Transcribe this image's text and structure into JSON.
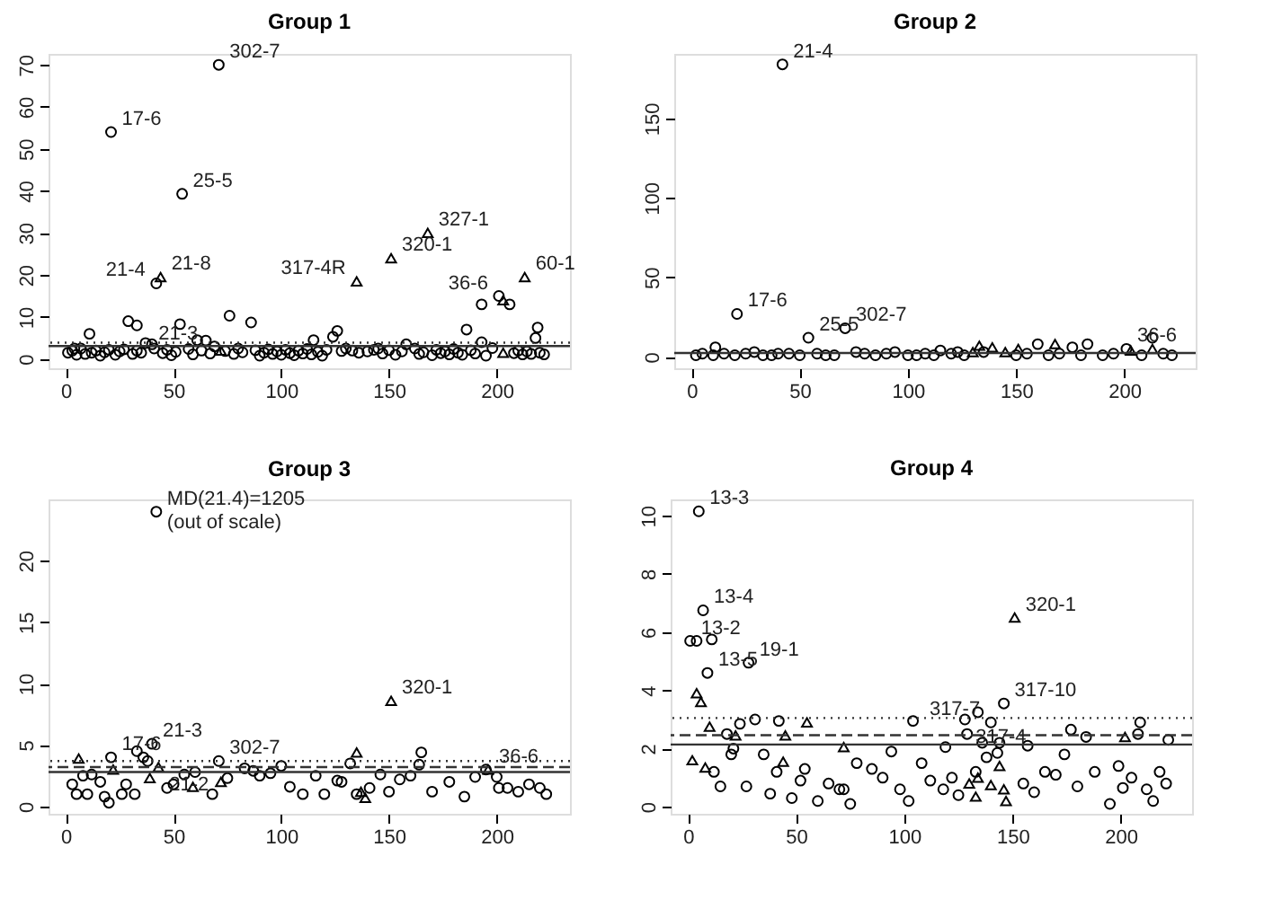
{
  "chart_data": [
    {
      "type": "scatter",
      "title": "Group 1",
      "xlim": [
        -8,
        234
      ],
      "ylim": [
        -2.2,
        72.6
      ],
      "xticks": [
        0,
        50,
        100,
        150,
        200
      ],
      "yticks": [
        0,
        10,
        20,
        30,
        40,
        50,
        60,
        70
      ],
      "grid": false,
      "series": [
        {
          "marker": "circle",
          "color": "#000000",
          "x": [
            1,
            3,
            5,
            7,
            9,
            12,
            14,
            16,
            18,
            20,
            23,
            25,
            27,
            31,
            33,
            35,
            37,
            45,
            47,
            49,
            51,
            57,
            59,
            61,
            63,
            65,
            67,
            69,
            74,
            78,
            80,
            82,
            88,
            90,
            92,
            94,
            96,
            98,
            100,
            102,
            104,
            106,
            108,
            110,
            112,
            114,
            117,
            119,
            121,
            128,
            147,
            150,
            153,
            156,
            162,
            164,
            166,
            170,
            172,
            174,
            176,
            178,
            180,
            182,
            184,
            188,
            190,
            195,
            198,
            208,
            210,
            212,
            214,
            216,
            220,
            222,
            11,
            29,
            33,
            53,
            76,
            86,
            115,
            124,
            126,
            158,
            186,
            193,
            193,
            206,
            218,
            219
          ],
          "values": [
            1.5,
            2,
            1,
            2.5,
            1.2,
            1.5,
            2,
            0.8,
            1.6,
            2.2,
            1,
            1.8,
            2.3,
            1.2,
            2,
            1.5,
            3.8,
            1.4,
            2.2,
            0.9,
            1.7,
            2.4,
            1.1,
            4.5,
            2,
            4.4,
            1.3,
            3,
            1.9,
            1.2,
            2.5,
            1.6,
            2.1,
            0.8,
            1.5,
            2.3,
            1.2,
            1.8,
            1,
            2.2,
            1.4,
            0.9,
            2,
            1.3,
            2.4,
            1.1,
            1.7,
            0.8,
            2.2,
            1.9,
            1.3,
            2.1,
            1,
            1.8,
            2.5,
            1.2,
            1.6,
            0.9,
            2.2,
            1.4,
            1.8,
            1.1,
            2.4,
            1.5,
            1,
            2.1,
            1.3,
            0.8,
            2.6,
            1.4,
            2,
            1.1,
            1.8,
            1.2,
            1.5,
            1.1,
            6,
            9,
            8,
            8.3,
            10.3,
            8.7,
            4.5,
            5.3,
            6.7,
            3.5,
            7,
            13,
            4,
            13,
            5,
            7.5
          ]
        },
        {
          "marker": "circle",
          "color": "#000000",
          "x": [
            21,
            71,
            54,
            42,
            201,
            4,
            38,
            40,
            41,
            130,
            133,
            136,
            140,
            143,
            145
          ],
          "values": [
            54,
            70,
            39.3,
            18,
            15,
            2.5,
            null,
            3.5,
            2.5,
            2.5,
            2,
            1.5,
            1.8,
            2.2,
            2.5
          ]
        },
        {
          "marker": "triangle",
          "color": "#000000",
          "x": [
            135,
            72,
            203
          ],
          "values": [
            18.5,
            2,
            1.5
          ]
        },
        {
          "marker": "triangle",
          "color": "#000000",
          "x": [
            44,
            151,
            168,
            213,
            203
          ],
          "values": [
            19.5,
            24,
            30,
            19.5,
            14
          ]
        }
      ],
      "ref_lines": [
        {
          "axis": "y",
          "value": 3.1,
          "line_style": "solid"
        },
        {
          "axis": "y",
          "value": 3.9,
          "line_style": "dotted"
        }
      ],
      "annotations": [
        {
          "text": "302-7",
          "x": 71,
          "y": 70
        },
        {
          "text": "17-6",
          "x": 21,
          "y": 54
        },
        {
          "text": "25-5",
          "x": 54,
          "y": 39.3
        },
        {
          "text": "21-8",
          "x": 44,
          "y": 19.5
        },
        {
          "text": "21-4",
          "x": 42,
          "y": 18
        },
        {
          "text": "21-3",
          "x": 38,
          "y": 3
        },
        {
          "text": "320-1",
          "x": 151,
          "y": 24
        },
        {
          "text": "317-4R",
          "x": 135,
          "y": 18.5
        },
        {
          "text": "327-1",
          "x": 168,
          "y": 30
        },
        {
          "text": "60-1",
          "x": 213,
          "y": 19.5
        },
        {
          "text": "36-6",
          "x": 201,
          "y": 15
        }
      ]
    },
    {
      "type": "scatter",
      "title": "Group 2",
      "xlim": [
        -8,
        233
      ],
      "ylim": [
        -7.2,
        190.6
      ],
      "xticks": [
        0,
        50,
        100,
        150,
        200
      ],
      "yticks": [
        0,
        50,
        100,
        150
      ],
      "grid": false,
      "series": [
        {
          "marker": "circle",
          "color": "#000000",
          "x": [
            2,
            10,
            15,
            20,
            25,
            33,
            37,
            45,
            50,
            58,
            62,
            66,
            80,
            85,
            90,
            100,
            104,
            108,
            112,
            120,
            126,
            150,
            155,
            165,
            170,
            180,
            190,
            195,
            208,
            218,
            222,
            11,
            29,
            160,
            176,
            183,
            213,
            115,
            123,
            94,
            76
          ],
          "values": [
            1,
            1,
            2,
            1,
            2,
            1,
            1,
            2,
            1,
            2,
            1,
            1,
            2,
            1,
            2,
            1,
            1,
            2,
            1,
            2,
            1,
            1,
            2,
            1,
            2,
            1,
            1,
            2,
            1,
            2,
            1,
            6,
            3,
            8,
            6,
            8,
            12,
            4,
            3,
            3,
            3
          ]
        },
        {
          "marker": "circle",
          "color": "#000000",
          "x": [
            42,
            21,
            54,
            71,
            201,
            5,
            40,
            135
          ],
          "values": [
            184,
            27,
            12,
            18,
            5,
            2,
            2,
            3
          ]
        },
        {
          "marker": "triangle",
          "color": "#000000",
          "x": [
            133,
            139,
            130,
            145
          ],
          "values": [
            7,
            6,
            3,
            3
          ]
        },
        {
          "marker": "triangle",
          "color": "#000000",
          "x": [
            151,
            168,
            213,
            203
          ],
          "values": [
            5,
            8,
            5,
            4
          ]
        }
      ],
      "ref_lines": [
        {
          "axis": "y",
          "value": 2.4,
          "line_style": "solid"
        }
      ],
      "annotations": [
        {
          "text": "21-4",
          "x": 42,
          "y": 184
        },
        {
          "text": "17-6",
          "x": 21,
          "y": 27
        },
        {
          "text": "25-5",
          "x": 54,
          "y": 12
        },
        {
          "text": "302-7",
          "x": 71,
          "y": 18
        },
        {
          "text": "36-6",
          "x": 201,
          "y": 5
        }
      ]
    },
    {
      "type": "scatter",
      "title": "Group 3",
      "xlim": [
        -8,
        234
      ],
      "ylim": [
        -0.6,
        25
      ],
      "xticks": [
        0,
        50,
        100,
        150,
        200
      ],
      "yticks": [
        0,
        5,
        10,
        15,
        20
      ],
      "grid": false,
      "series": [
        {
          "marker": "circle",
          "color": "#000000",
          "x": [
            33,
            36,
            165,
            164,
            16,
            18,
            20,
            28,
            32,
            47,
            60,
            68,
            83,
            90,
            100,
            104,
            110,
            116,
            120,
            126,
            150,
            155,
            160,
            170,
            178,
            185,
            190,
            195,
            200,
            205,
            210,
            215,
            220,
            223,
            95,
            75,
            50,
            12,
            26,
            87
          ],
          "values": [
            4.5,
            4,
            4.4,
            3.4,
            2,
            0.8,
            0.3,
            1.8,
            1,
            1.5,
            2.8,
            1,
            3.1,
            2.5,
            3.3,
            1.6,
            1,
            2.5,
            1,
            2.1,
            1.2,
            2.2,
            2.5,
            1.2,
            2,
            0.8,
            2.4,
            3,
            2.4,
            1.5,
            1.2,
            1.8,
            1.5,
            1,
            2.7,
            2.3,
            1.8,
            2.6,
            1,
            2.9
          ]
        },
        {
          "marker": "circle",
          "color": "#000000",
          "x": [
            42,
            3,
            5,
            8,
            10,
            21,
            40,
            38,
            55,
            71,
            132,
            146,
            135,
            141,
            128,
            201
          ],
          "values": [
            24,
            1.8,
            1,
            2.5,
            1,
            4,
            5.1,
            3.7,
            2.6,
            3.7,
            3.5,
            2.6,
            1,
            1.5,
            2,
            1.5
          ]
        },
        {
          "marker": "triangle",
          "color": "#000000",
          "x": [
            6,
            22,
            39,
            43,
            59,
            72,
            135,
            139,
            137
          ],
          "values": [
            3.9,
            3,
            2.3,
            3.2,
            1.6,
            2,
            4.4,
            0.7,
            1.2
          ]
        },
        {
          "marker": "triangle",
          "color": "#000000",
          "x": [
            151,
            196
          ],
          "values": [
            8.6,
            3
          ]
        }
      ],
      "ref_lines": [
        {
          "axis": "y",
          "value": 2.8,
          "line_style": "solid"
        },
        {
          "axis": "y",
          "value": 3.2,
          "line_style": "dashed"
        },
        {
          "axis": "y",
          "value": 3.7,
          "line_style": "dotted"
        }
      ],
      "annotations": [
        {
          "text": "MD(21.4)=1205\n(out of scale)",
          "x": 42,
          "y": 24
        },
        {
          "text": "17-6",
          "x": 21,
          "y": 4
        },
        {
          "text": "21-3",
          "x": 40,
          "y": 5.1
        },
        {
          "text": "21-2",
          "x": 43,
          "y": 3.2
        },
        {
          "text": "302-7",
          "x": 71,
          "y": 3.7
        },
        {
          "text": "320-1",
          "x": 151,
          "y": 8.6
        },
        {
          "text": "36-6",
          "x": 196,
          "y": 3
        }
      ]
    },
    {
      "type": "scatter",
      "title": "Group 4",
      "xlim": [
        -8,
        233
      ],
      "ylim": [
        -0.24,
        10.56
      ],
      "xticks": [
        0,
        50,
        100,
        150,
        200
      ],
      "yticks": [
        0,
        2,
        4,
        6,
        8,
        10
      ],
      "grid": false,
      "series": [
        {
          "marker": "circle",
          "color": "#000000",
          "x": [
            11,
            28,
            104,
            31,
            24,
            18,
            209,
            208,
            222,
            184,
            177,
            157,
            119,
            12,
            15,
            20,
            27,
            35,
            48,
            52,
            60,
            65,
            70,
            75,
            78,
            85,
            90,
            94,
            98,
            102,
            108,
            112,
            118,
            122,
            125,
            155,
            160,
            165,
            170,
            174,
            180,
            188,
            195,
            199,
            205,
            212,
            215,
            218,
            221
          ],
          "values": [
            5.75,
            4.95,
            2.95,
            3,
            2.85,
            2.5,
            2.9,
            2.5,
            2.3,
            2.4,
            2.65,
            2.1,
            2.05,
            1.2,
            0.7,
            1.8,
            0.7,
            1.8,
            0.3,
            0.9,
            0.2,
            0.8,
            0.6,
            0.1,
            1.5,
            1.3,
            1,
            1.9,
            0.6,
            0.2,
            1.5,
            0.9,
            0.6,
            1,
            0.4,
            0.8,
            0.5,
            1.2,
            1.1,
            1.8,
            0.7,
            1.2,
            0.1,
            1.4,
            1,
            0.6,
            0.2,
            1.2,
            0.8
          ]
        },
        {
          "marker": "circle",
          "color": "#000000",
          "x": [
            5,
            7,
            1,
            4,
            9,
            42,
            21,
            41,
            38,
            54,
            72,
            128,
            129,
            134,
            140,
            146,
            136,
            144,
            143,
            138,
            133,
            201
          ],
          "values": [
            10.15,
            6.75,
            5.7,
            5.7,
            4.6,
            2.95,
            2,
            1.2,
            0.45,
            1.3,
            0.6,
            3,
            2.5,
            3.25,
            2.9,
            3.55,
            2.2,
            2.2,
            1.85,
            1.7,
            1.2,
            0.65
          ]
        },
        {
          "marker": "triangle",
          "color": "#000000",
          "x": [
            4,
            6,
            10,
            22,
            55,
            72,
            2,
            8,
            44,
            134,
            130,
            133,
            140,
            144,
            146,
            147,
            202
          ],
          "values": [
            3.9,
            3.6,
            2.75,
            2.45,
            2.9,
            2.05,
            1.6,
            1.35,
            1.55,
            1,
            0.8,
            0.35,
            0.75,
            1.4,
            0.6,
            0.2,
            2.4
          ]
        },
        {
          "marker": "triangle",
          "color": "#000000",
          "x": [
            151,
            45
          ],
          "values": [
            6.5,
            2.45
          ]
        }
      ],
      "ref_lines": [
        {
          "axis": "y",
          "value": 2.14,
          "line_style": "solid"
        },
        {
          "axis": "y",
          "value": 2.46,
          "line_style": "dashed"
        },
        {
          "axis": "y",
          "value": 3.05,
          "line_style": "dotted"
        }
      ],
      "annotations": [
        {
          "text": "13-3",
          "x": 5,
          "y": 10.15
        },
        {
          "text": "13-4",
          "x": 7,
          "y": 6.75
        },
        {
          "text": "13-2",
          "x": 1,
          "y": 5.7
        },
        {
          "text": "13-5",
          "x": 9,
          "y": 4.6
        },
        {
          "text": "19-1",
          "x": 28,
          "y": 4.95
        },
        {
          "text": "320-1",
          "x": 151,
          "y": 6.5
        },
        {
          "text": "317-10",
          "x": 146,
          "y": 3.55
        },
        {
          "text": "317-7",
          "x": 140,
          "y": 2.9
        },
        {
          "text": "317-4",
          "x": 128,
          "y": 3
        }
      ]
    }
  ]
}
